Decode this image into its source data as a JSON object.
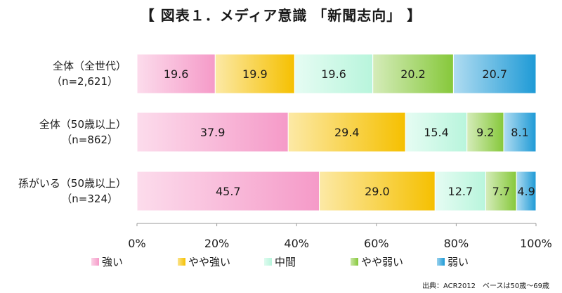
{
  "title": "【 図表１．メディア意識 「新聞志向」 】",
  "source": "出典：ACR2012　ベースは50歳～69歳",
  "legend": [
    {
      "label": "強い",
      "color": "#f59ac8"
    },
    {
      "label": "やや強い",
      "color": "#f5c000"
    },
    {
      "label": "中間",
      "color": "#b8f5dc"
    },
    {
      "label": "やや弱い",
      "color": "#86c83a"
    },
    {
      "label": "弱い",
      "color": "#1e9ad6"
    }
  ],
  "chart_data": {
    "type": "bar",
    "orientation": "horizontal",
    "stacked": "percent",
    "categories": [
      [
        "全体（全世代）",
        "（n=2,621）"
      ],
      [
        "全体（50歳以上）",
        "（n=862）"
      ],
      [
        "孫がいる（50歳以上）",
        "（n=324）"
      ]
    ],
    "series": [
      {
        "name": "強い",
        "values": [
          19.6,
          37.9,
          45.7
        ],
        "color": "#f59ac8"
      },
      {
        "name": "やや強い",
        "values": [
          19.9,
          29.4,
          29.0
        ],
        "color": "#f5c000"
      },
      {
        "name": "中間",
        "values": [
          19.6,
          15.4,
          12.7
        ],
        "color": "#b8f5dc"
      },
      {
        "name": "やや弱い",
        "values": [
          20.2,
          9.2,
          7.7
        ],
        "color": "#86c83a"
      },
      {
        "name": "弱い",
        "values": [
          20.7,
          8.1,
          4.9
        ],
        "color": "#1e9ad6"
      }
    ],
    "xlim": [
      0,
      100
    ],
    "xticks": [
      "0%",
      "20%",
      "40%",
      "60%",
      "80%",
      "100%"
    ],
    "grid": false,
    "legend_position": "bottom"
  }
}
